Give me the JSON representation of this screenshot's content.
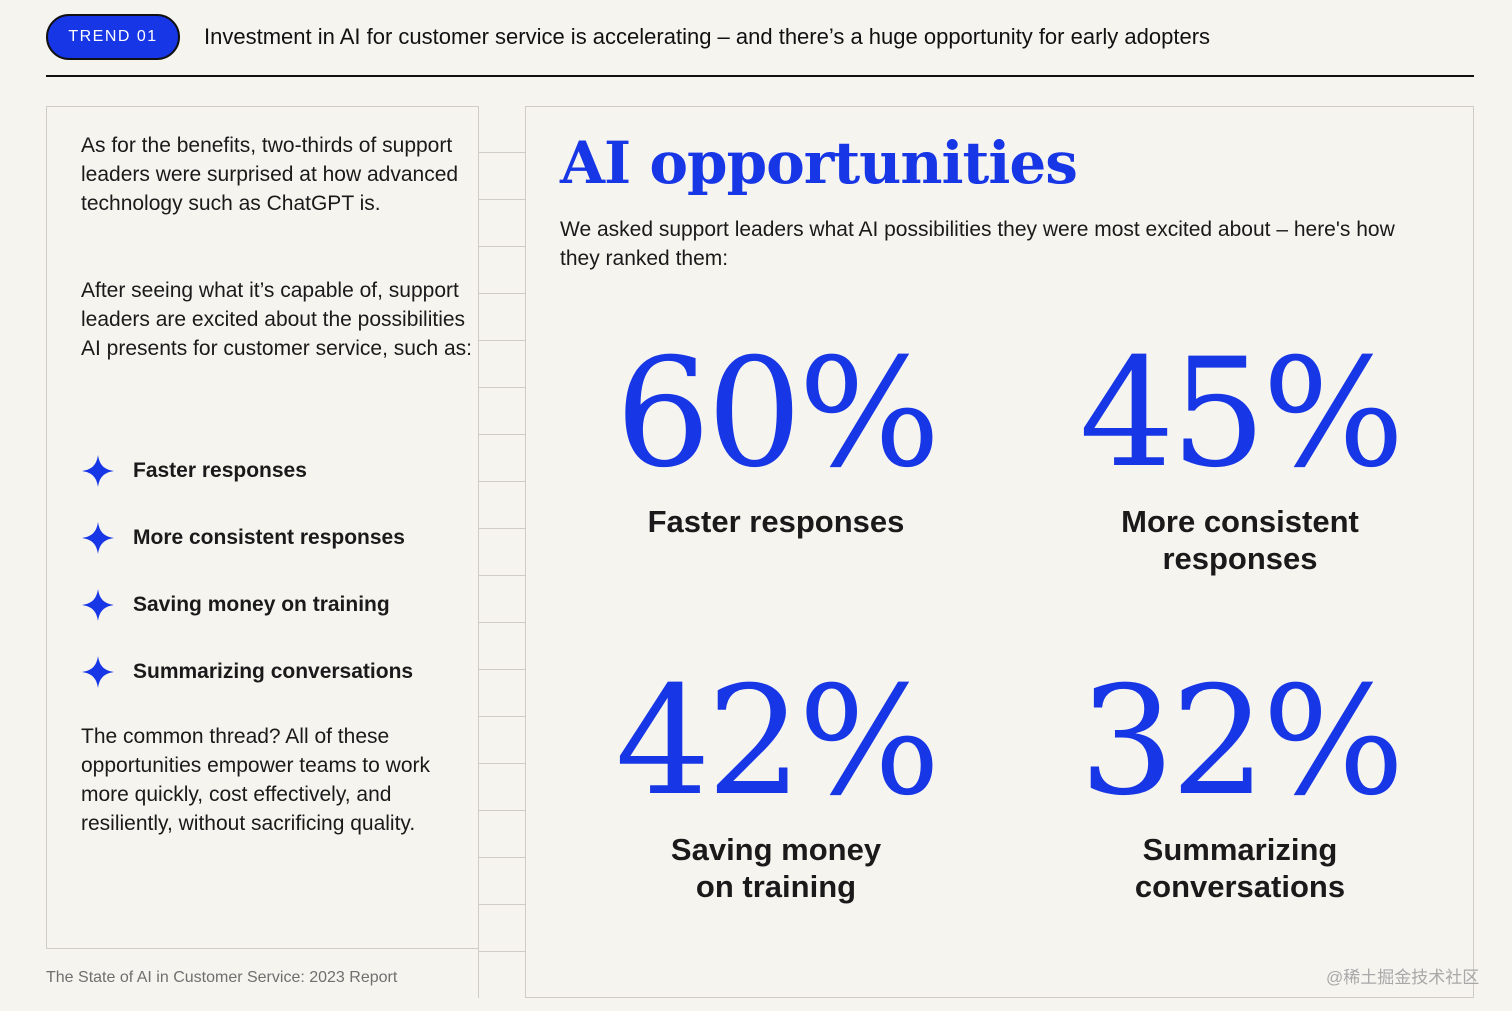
{
  "header": {
    "trend_label": "TREND 01",
    "headline": "Investment in AI for customer service is accelerating – and there’s a huge opportunity for early adopters"
  },
  "left": {
    "intro": "As for the benefits, two-thirds of support leaders were surprised at how advanced technology such as ChatGPT is.",
    "lead": "After seeing what it’s capable of, support leaders are excited about the possibilities AI presents for customer service, such as:",
    "bullets": [
      "Faster responses",
      "More consistent responses",
      "Saving money on training",
      "Summarizing conversations"
    ],
    "conclusion": "The common thread? All of these opportunities empower teams to work more quickly, cost effectively, and resiliently, without sacrificing quality."
  },
  "right": {
    "title": "AI opportunities",
    "subtitle": "We asked support leaders what AI possibilities they were most excited about – here's how they ranked them:",
    "stats": [
      {
        "value": "60%",
        "label": "Faster responses"
      },
      {
        "value": "45%",
        "label": "More consistent responses"
      },
      {
        "value": "42%",
        "label": "Saving money on training"
      },
      {
        "value": "32%",
        "label": "Summarizing conversations"
      }
    ]
  },
  "colors": {
    "accent": "#1736e6",
    "background": "#f6f4ef"
  },
  "icons": {
    "bullet": "four-point-star-icon"
  },
  "footer": "The State of AI in Customer Service: 2023 Report",
  "watermark": "@稀土掘金技术社区"
}
